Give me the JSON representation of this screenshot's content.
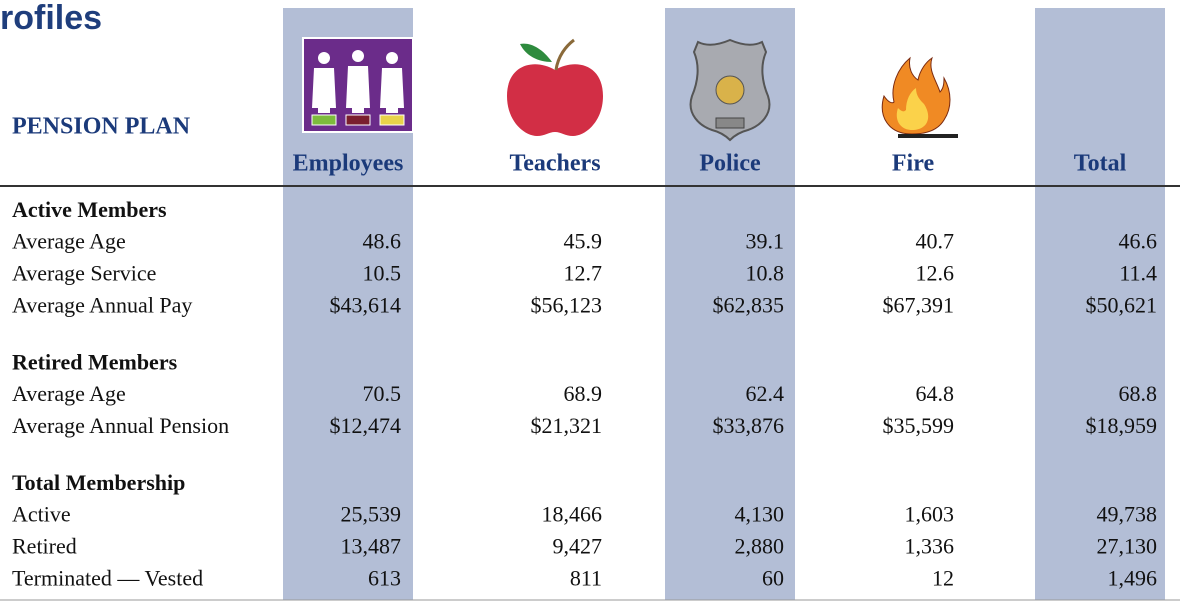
{
  "header": {
    "title": "rofiles",
    "plan_label": "PENSION PLAN",
    "columns": [
      "Employees",
      "Teachers",
      "Police",
      "Fire",
      "Total"
    ]
  },
  "sections": [
    {
      "title": "Active Members",
      "rows": [
        {
          "label": "Average Age",
          "values": [
            "48.6",
            "45.9",
            "39.1",
            "40.7",
            "46.6"
          ]
        },
        {
          "label": "Average Service",
          "values": [
            "10.5",
            "12.7",
            "10.8",
            "12.6",
            "11.4"
          ]
        },
        {
          "label": "Average Annual Pay",
          "values": [
            "$43,614",
            "$56,123",
            "$62,835",
            "$67,391",
            "$50,621"
          ]
        }
      ]
    },
    {
      "title": "Retired Members",
      "rows": [
        {
          "label": "Average Age",
          "values": [
            "70.5",
            "68.9",
            "62.4",
            "64.8",
            "68.8"
          ]
        },
        {
          "label": "Average Annual Pension",
          "values": [
            "$12,474",
            "$21,321",
            "$33,876",
            "$35,599",
            "$18,959"
          ]
        }
      ]
    },
    {
      "title": "Total Membership",
      "rows": [
        {
          "label": "Active",
          "values": [
            "25,539",
            "18,466",
            "4,130",
            "1,603",
            "49,738"
          ]
        },
        {
          "label": "Retired",
          "values": [
            "13,487",
            "9,427",
            "2,880",
            "1,336",
            "27,130"
          ]
        },
        {
          "label": "Terminated — Vested",
          "values": [
            "613",
            "811",
            "60",
            "12",
            "1,496"
          ]
        }
      ]
    }
  ]
}
